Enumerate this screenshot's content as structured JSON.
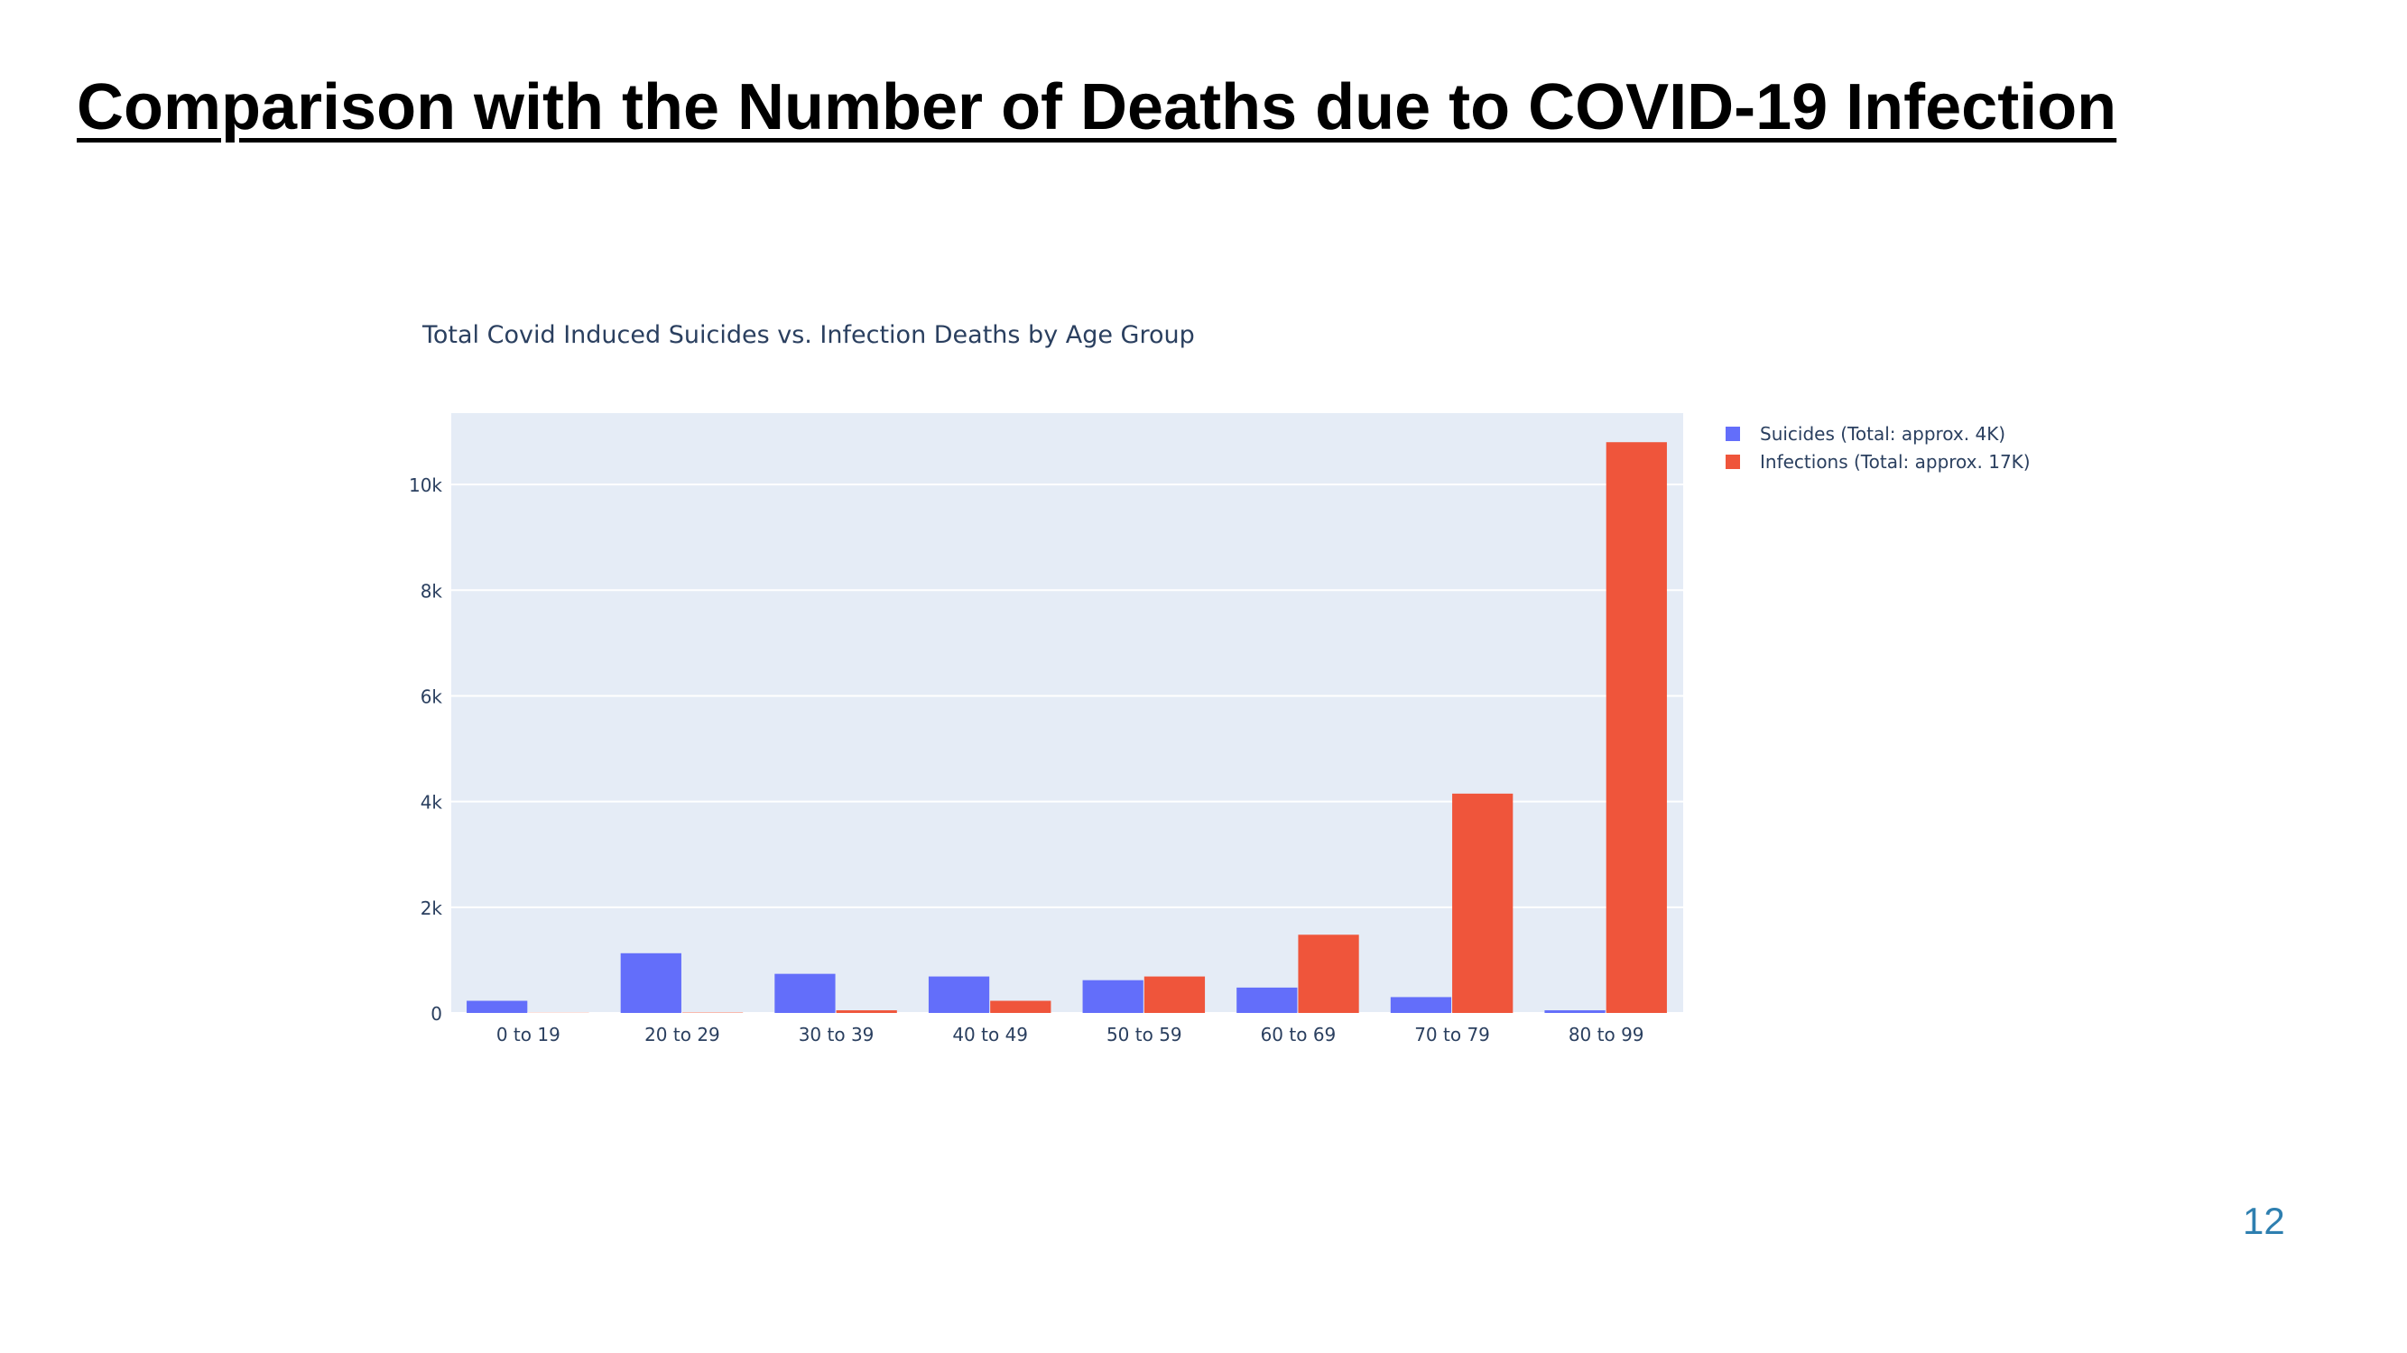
{
  "slide": {
    "title": "Comparison with the Number of Deaths due to COVID-19 Infection",
    "page_number": "12"
  },
  "colors": {
    "plot_background": "#E5ECF6",
    "gridline": "#FFFFFF",
    "text": "#2A3F5F"
  },
  "chart_data": {
    "type": "bar",
    "title": "Total Covid Induced Suicides vs. Infection Deaths by Age Group",
    "xlabel": "",
    "ylabel": "",
    "categories": [
      "0 to 19",
      "20 to 29",
      "30 to 39",
      "40 to 49",
      "50 to 59",
      "60 to 69",
      "70 to 79",
      "80 to 99"
    ],
    "series": [
      {
        "name": "Suicides (Total: approx. 4K)",
        "color": "#636EFA",
        "values": [
          230,
          1130,
          740,
          690,
          620,
          480,
          300,
          50
        ]
      },
      {
        "name": "Infections (Total: approx. 17K)",
        "color": "#EF553B",
        "values": [
          3,
          7,
          50,
          230,
          690,
          1480,
          4150,
          10800
        ]
      }
    ],
    "ylim": [
      0,
      11350
    ],
    "yticks": [
      0,
      2000,
      4000,
      6000,
      8000,
      10000
    ],
    "ytick_labels": [
      "0",
      "2k",
      "4k",
      "6k",
      "8k",
      "10k"
    ],
    "grid": true,
    "legend": "top-right, outside plot"
  }
}
